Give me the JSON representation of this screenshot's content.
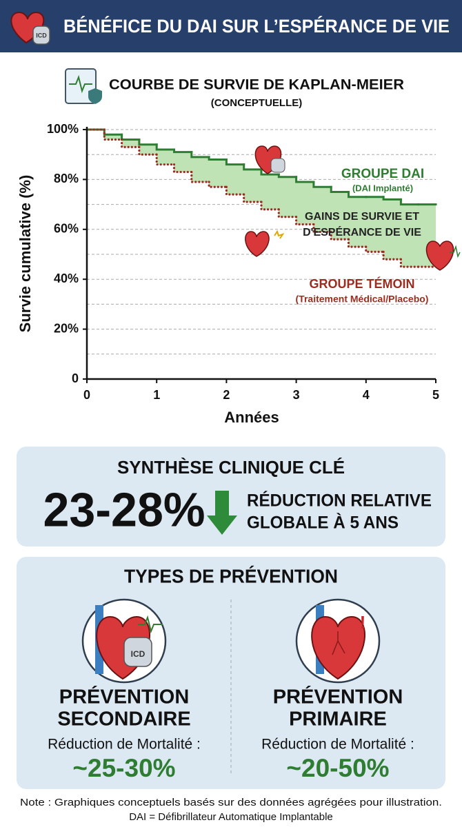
{
  "header": {
    "title": "BÉNÉFICE DU DAI SUR L’ESPÉRANCE DE VIE"
  },
  "chart_data": {
    "type": "step",
    "title": "COURBE DE SURVIE DE KAPLAN-MEIER",
    "subtitle": "(CONCEPTUELLE)",
    "x_label": "Années",
    "y_label": "Survie cumulative (%)",
    "x": [
      0,
      0.25,
      0.5,
      0.75,
      1,
      1.25,
      1.5,
      1.75,
      2,
      2.25,
      2.5,
      2.75,
      3,
      3.25,
      3.5,
      3.75,
      4,
      4.25,
      4.5,
      4.75,
      5
    ],
    "series": [
      {
        "name": "GROUPE DAI",
        "note": "(DAI Implanté)",
        "color": "#2e7d32",
        "style": "solid",
        "values": [
          100,
          98,
          96,
          94,
          92,
          91,
          89,
          88,
          86,
          84,
          82,
          81,
          79,
          77,
          75,
          73,
          73,
          72,
          70,
          70,
          70
        ]
      },
      {
        "name": "GROUPE TÉMOIN",
        "note": "(Traitement Médical/Placebo)",
        "color": "#9b2d20",
        "style": "dotted",
        "values": [
          100,
          96,
          93,
          90,
          86,
          83,
          79,
          77,
          74,
          71,
          68,
          65,
          62,
          59,
          56,
          53,
          51,
          48,
          45,
          45,
          45
        ]
      }
    ],
    "gain_label": [
      "GAINS DE SURVIE ET",
      "D'ESPÉRANCE DE VIE"
    ],
    "gain_color": "#bfe3b4",
    "xlim": [
      0,
      5
    ],
    "ylim": [
      0,
      100
    ],
    "xticks": [
      0,
      1,
      2,
      3,
      4,
      5
    ],
    "yticks": [
      0,
      {
        "value": 20,
        "label": "20%"
      },
      {
        "value": 40,
        "label": "40%"
      },
      {
        "value": 60,
        "label": "60%"
      },
      {
        "value": 80,
        "label": "80%"
      },
      {
        "value": 100,
        "label": "100%"
      }
    ],
    "minor_yticks": [
      10,
      30,
      50,
      70,
      90
    ],
    "grid": true
  },
  "summary": {
    "title": "SYNTHÈSE CLINIQUE CLÉ",
    "figure": "23-28%",
    "text": [
      "RÉDUCTION RELATIVE",
      "GLOBALE À 5 ANS"
    ]
  },
  "prevention": {
    "title": "TYPES DE PRÉVENTION",
    "items": [
      {
        "title": [
          "PRÉVENTION",
          "SECONDAIRE"
        ],
        "label": "Réduction de Mortalité :",
        "value": "~25-30%"
      },
      {
        "title": [
          "PRÉVENTION",
          "PRIMAIRE"
        ],
        "label": "Réduction de Mortalité :",
        "value": "~20-50%"
      }
    ]
  },
  "footnote": [
    "Note : Graphiques conceptuels basés sur des données agrégées pour illustration.",
    "DAI = Défibrillateur Automatique Implantable"
  ]
}
